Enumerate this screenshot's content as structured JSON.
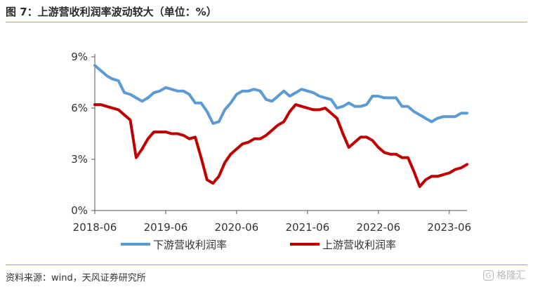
{
  "header": {
    "title": "图 7：上游营收利润率波动较大（单位：%）"
  },
  "footer": {
    "source": "资料来源：wind，天风证券研究所",
    "watermark": "格隆汇"
  },
  "chart_data": {
    "type": "line",
    "title": "图 7：上游营收利润率波动较大（单位：%）",
    "xlabel": "",
    "ylabel": "",
    "ylim": [
      0,
      9
    ],
    "yticks": [
      0,
      3,
      6,
      9
    ],
    "ytick_labels": [
      "0%",
      "3%",
      "6%",
      "9%"
    ],
    "xlim": [
      "2018-06",
      "2023-09"
    ],
    "xtick_labels": [
      "2018-06",
      "2019-06",
      "2020-06",
      "2021-06",
      "2022-06",
      "2023-06"
    ],
    "grid": false,
    "legend_position": "bottom",
    "series": [
      {
        "name": "下游营收利润率",
        "color": "#5b9bd5",
        "x": [
          "2018-06",
          "2018-07",
          "2018-08",
          "2018-09",
          "2018-10",
          "2018-11",
          "2018-12",
          "2019-01",
          "2019-02",
          "2019-03",
          "2019-04",
          "2019-05",
          "2019-06",
          "2019-07",
          "2019-08",
          "2019-09",
          "2019-10",
          "2019-11",
          "2019-12",
          "2020-01",
          "2020-02",
          "2020-03",
          "2020-04",
          "2020-05",
          "2020-06",
          "2020-07",
          "2020-08",
          "2020-09",
          "2020-10",
          "2020-11",
          "2020-12",
          "2021-01",
          "2021-02",
          "2021-03",
          "2021-04",
          "2021-05",
          "2021-06",
          "2021-07",
          "2021-08",
          "2021-09",
          "2021-10",
          "2021-11",
          "2021-12",
          "2022-01",
          "2022-02",
          "2022-03",
          "2022-04",
          "2022-05",
          "2022-06",
          "2022-07",
          "2022-08",
          "2022-09",
          "2022-10",
          "2022-11",
          "2022-12",
          "2023-01",
          "2023-02",
          "2023-03",
          "2023-04",
          "2023-05",
          "2023-06",
          "2023-07",
          "2023-08",
          "2023-09"
        ],
        "values": [
          8.5,
          8.2,
          7.9,
          7.7,
          7.6,
          6.9,
          6.8,
          6.6,
          6.4,
          6.6,
          6.9,
          7.0,
          7.2,
          7.1,
          7.0,
          7.0,
          6.8,
          6.3,
          6.3,
          5.8,
          5.1,
          5.2,
          5.9,
          6.3,
          6.8,
          7.0,
          7.0,
          7.1,
          7.0,
          6.5,
          6.4,
          6.7,
          7.0,
          6.7,
          6.9,
          7.1,
          7.0,
          6.9,
          6.7,
          6.6,
          6.5,
          6.0,
          6.1,
          6.3,
          6.1,
          6.1,
          6.2,
          6.7,
          6.7,
          6.6,
          6.6,
          6.6,
          6.1,
          6.1,
          5.8,
          5.6,
          5.4,
          5.2,
          5.4,
          5.5,
          5.5,
          5.5,
          5.7,
          5.7
        ]
      },
      {
        "name": "上游营收利润率",
        "color": "#c00000",
        "x": [
          "2018-06",
          "2018-07",
          "2018-08",
          "2018-09",
          "2018-10",
          "2018-11",
          "2018-12",
          "2019-01",
          "2019-02",
          "2019-03",
          "2019-04",
          "2019-05",
          "2019-06",
          "2019-07",
          "2019-08",
          "2019-09",
          "2019-10",
          "2019-11",
          "2019-12",
          "2020-01",
          "2020-02",
          "2020-03",
          "2020-04",
          "2020-05",
          "2020-06",
          "2020-07",
          "2020-08",
          "2020-09",
          "2020-10",
          "2020-11",
          "2020-12",
          "2021-01",
          "2021-02",
          "2021-03",
          "2021-04",
          "2021-05",
          "2021-06",
          "2021-07",
          "2021-08",
          "2021-09",
          "2021-10",
          "2021-11",
          "2021-12",
          "2022-01",
          "2022-02",
          "2022-03",
          "2022-04",
          "2022-05",
          "2022-06",
          "2022-07",
          "2022-08",
          "2022-09",
          "2022-10",
          "2022-11",
          "2022-12",
          "2023-01",
          "2023-02",
          "2023-03",
          "2023-04",
          "2023-05",
          "2023-06",
          "2023-07",
          "2023-08",
          "2023-09"
        ],
        "values": [
          6.2,
          6.2,
          6.1,
          6.0,
          5.9,
          5.6,
          5.3,
          3.1,
          3.6,
          4.2,
          4.6,
          4.6,
          4.6,
          4.5,
          4.5,
          4.4,
          4.2,
          4.3,
          3.1,
          1.8,
          1.6,
          2.0,
          2.8,
          3.3,
          3.6,
          3.9,
          4.0,
          4.2,
          4.2,
          4.4,
          4.7,
          5.0,
          5.2,
          5.8,
          6.2,
          6.1,
          6.0,
          5.9,
          5.9,
          6.0,
          5.7,
          5.4,
          4.5,
          3.7,
          4.0,
          4.3,
          4.3,
          4.1,
          3.7,
          3.4,
          3.3,
          3.3,
          3.1,
          3.1,
          2.3,
          1.4,
          1.8,
          2.0,
          2.0,
          2.1,
          2.2,
          2.4,
          2.5,
          2.7
        ]
      }
    ]
  }
}
